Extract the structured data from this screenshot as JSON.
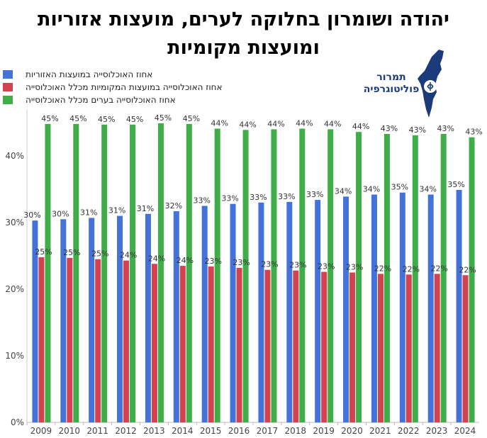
{
  "title": "יהודה ושומרון בחלוקה לערים, מועצות אזוריות ומועצות מקומיות",
  "logo": {
    "text_line1": "תמרור",
    "text_line2": "פוליטוגרפיה",
    "icon": "israel-map-icon"
  },
  "colors": {
    "blue": "#4472d9",
    "red": "#d2434f",
    "green": "#3fae49"
  },
  "chart_data": {
    "type": "bar",
    "categories": [
      "2009",
      "2010",
      "2011",
      "2012",
      "2013",
      "2014",
      "2015",
      "2016",
      "2017",
      "2018",
      "2019",
      "2020",
      "2021",
      "2022",
      "2023",
      "2024"
    ],
    "ylim": [
      0,
      0.47
    ],
    "yticks": [
      "0%",
      "10%",
      "20%",
      "30%",
      "40%"
    ],
    "legend_position": "top-left",
    "grid": false,
    "series": [
      {
        "name": "אחוז האוכלוסייה במועצות האזוריות",
        "color": "#4472d9",
        "values": [
          0.303,
          0.305,
          0.307,
          0.31,
          0.313,
          0.317,
          0.325,
          0.328,
          0.33,
          0.331,
          0.334,
          0.339,
          0.342,
          0.345,
          0.342,
          0.349
        ],
        "labels": [
          "30%",
          "30%",
          "31%",
          "31%",
          "31%",
          "32%",
          "33%",
          "33%",
          "33%",
          "33%",
          "33%",
          "34%",
          "34%",
          "35%",
          "34%",
          "35%"
        ]
      },
      {
        "name": "אחוז האוכלוסייה במועצות המקומיות מכלל האוכלוסייה",
        "color": "#d2434f",
        "values": [
          0.248,
          0.247,
          0.245,
          0.243,
          0.238,
          0.235,
          0.234,
          0.232,
          0.229,
          0.228,
          0.226,
          0.225,
          0.223,
          0.222,
          0.223,
          0.221
        ],
        "labels": [
          "25%",
          "25%",
          "25%",
          "24%",
          "24%",
          "24%",
          "23%",
          "23%",
          "23%",
          "23%",
          "23%",
          "23%",
          "22%",
          "22%",
          "22%",
          "22%"
        ]
      },
      {
        "name": "אחוז האוכלוסייה בערים מכלל האוכלוסייה",
        "color": "#3fae49",
        "values": [
          0.448,
          0.448,
          0.447,
          0.447,
          0.449,
          0.448,
          0.441,
          0.439,
          0.44,
          0.441,
          0.44,
          0.436,
          0.433,
          0.431,
          0.433,
          0.428
        ],
        "labels": [
          "45%",
          "45%",
          "45%",
          "45%",
          "45%",
          "45%",
          "44%",
          "44%",
          "44%",
          "44%",
          "44%",
          "44%",
          "43%",
          "43%",
          "43%",
          "43%"
        ]
      }
    ]
  }
}
